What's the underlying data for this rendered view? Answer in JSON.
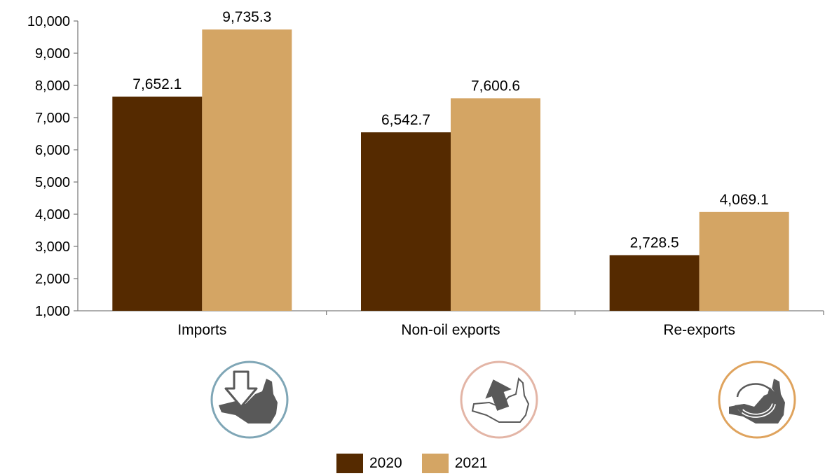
{
  "chart_data": {
    "type": "bar",
    "categories": [
      "Imports",
      "Non-oil exports",
      "Re-exports"
    ],
    "series": [
      {
        "name": "2020",
        "values": [
          7652.1,
          6542.7,
          2728.5
        ],
        "labels": [
          "7,652.1",
          "6,542.7",
          "2,728.5"
        ],
        "color": "#552a00"
      },
      {
        "name": "2021",
        "values": [
          9735.3,
          7600.6,
          4069.1
        ],
        "labels": [
          "9,735.3",
          "7,600.6",
          "4,069.1"
        ],
        "color": "#d4a564"
      }
    ],
    "ylim": [
      1000,
      10000
    ],
    "yticks": [
      "1,000",
      "2,000",
      "3,000",
      "4,000",
      "5,000",
      "6,000",
      "7,000",
      "8,000",
      "9,000",
      "10,000"
    ],
    "grid": false,
    "legend_placement": "bottom-center"
  },
  "icons": [
    {
      "name": "imports-icon",
      "ring_color": "#7fa6b6"
    },
    {
      "name": "non-oil-exports-icon",
      "ring_color": "#e3b5a6"
    },
    {
      "name": "re-exports-icon",
      "ring_color": "#dfa35d"
    }
  ]
}
